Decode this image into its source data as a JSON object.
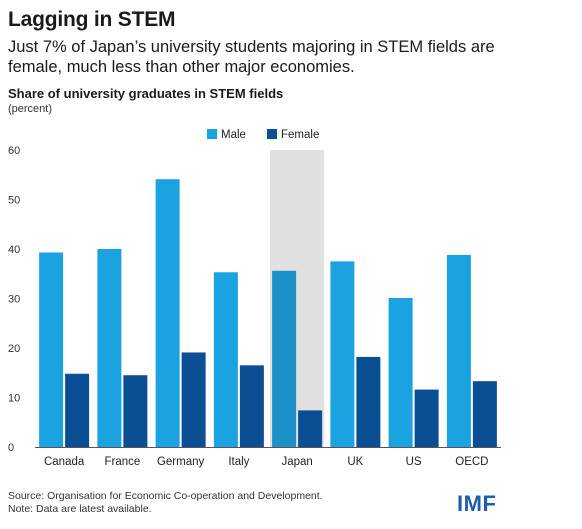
{
  "header": {
    "title": "Lagging in STEM",
    "subtitle": "Just 7% of Japan’s university students majoring in STEM fields are female, much less than other major economies."
  },
  "chart_data": {
    "type": "bar",
    "title": "Share of university graduates in STEM fields",
    "unit": "(percent)",
    "categories": [
      "Canada",
      "France",
      "Germany",
      "Italy",
      "Japan",
      "UK",
      "US",
      "OECD"
    ],
    "series": [
      {
        "name": "Male",
        "values": [
          39.3,
          40.0,
          54.1,
          35.3,
          35.6,
          37.5,
          30.1,
          38.8
        ],
        "color": "#1aa3e0"
      },
      {
        "name": "Female",
        "values": [
          14.8,
          14.5,
          19.1,
          16.5,
          7.4,
          18.2,
          11.6,
          13.3
        ],
        "color": "#0a4f94"
      }
    ],
    "highlight": {
      "category": "Japan",
      "male_color": "#1e90c8",
      "band_color": "#e1e1e1"
    },
    "ylim": [
      0,
      60
    ],
    "yticks": [
      0,
      10,
      20,
      30,
      40,
      50,
      60
    ],
    "grid": false,
    "legend_position": "top-center"
  },
  "footer": {
    "source": "Source: Organisation for Economic Co-operation and Development.",
    "note": "Note: Data are latest available.",
    "logo": "IMF"
  }
}
